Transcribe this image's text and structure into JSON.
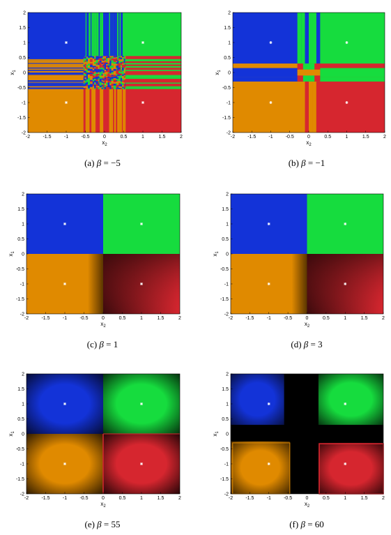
{
  "panels": [
    {
      "id": "a",
      "label": "(a)",
      "symbol": "β",
      "eq": "=",
      "value": "−5",
      "pattern": "stripes-dense"
    },
    {
      "id": "b",
      "label": "(b)",
      "symbol": "β",
      "eq": "=",
      "value": "−1",
      "pattern": "stripes-coarse"
    },
    {
      "id": "c",
      "label": "(c)",
      "symbol": "β",
      "eq": "=",
      "value": "1",
      "pattern": "clean"
    },
    {
      "id": "d",
      "label": "(d)",
      "symbol": "β",
      "eq": "=",
      "value": "3",
      "pattern": "clean-shadow"
    },
    {
      "id": "e",
      "label": "(e)",
      "symbol": "β",
      "eq": "=",
      "value": "55",
      "pattern": "dark-boundary"
    },
    {
      "id": "f",
      "label": "(f)",
      "symbol": "β",
      "eq": "=",
      "value": "60",
      "pattern": "black-cross"
    }
  ],
  "axes": {
    "xlabel": "x",
    "xlabel_sub": "2",
    "ylabel": "x",
    "ylabel_sub": "1",
    "xticks": [
      "-2",
      "-1.5",
      "-1",
      "-0.5",
      "0",
      "0.5",
      "1",
      "1.5",
      "2"
    ],
    "yticks": [
      "2",
      "1.5",
      "1",
      "0.5",
      "0",
      "-0.5",
      "-1",
      "-1.5",
      "-2"
    ],
    "xlim": [
      -2,
      2
    ],
    "ylim": [
      -2,
      2
    ]
  },
  "colors": {
    "blue": "#1333d8",
    "green": "#16dc3e",
    "orange": "#e08a00",
    "red": "#d6262f",
    "black": "#000000",
    "marker": "#ffffff"
  },
  "markers": [
    {
      "x": -1,
      "y": 1
    },
    {
      "x": 1,
      "y": 1
    },
    {
      "x": -1,
      "y": -1
    },
    {
      "x": 1,
      "y": -1
    }
  ]
}
